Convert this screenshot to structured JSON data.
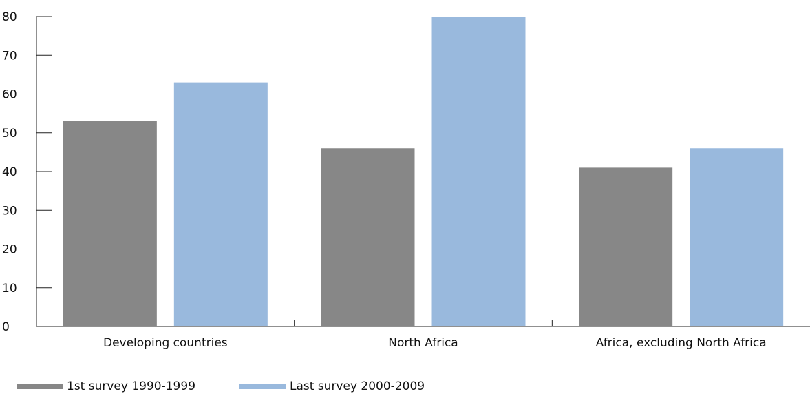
{
  "chart_data": {
    "type": "bar",
    "categories": [
      "Developing countries",
      "North Africa",
      "Africa, excluding North Africa"
    ],
    "series": [
      {
        "name": "1st survey 1990-1999",
        "color": "#878787",
        "values": [
          53,
          46,
          41
        ]
      },
      {
        "name": "Last survey 2000-2009",
        "color": "#99b9dd",
        "values": [
          63,
          80,
          46
        ]
      }
    ],
    "yticks": [
      0,
      10,
      20,
      30,
      40,
      50,
      60,
      70,
      80
    ],
    "ylim": [
      0,
      80
    ],
    "grid": false,
    "legend_position": "bottom-left"
  }
}
